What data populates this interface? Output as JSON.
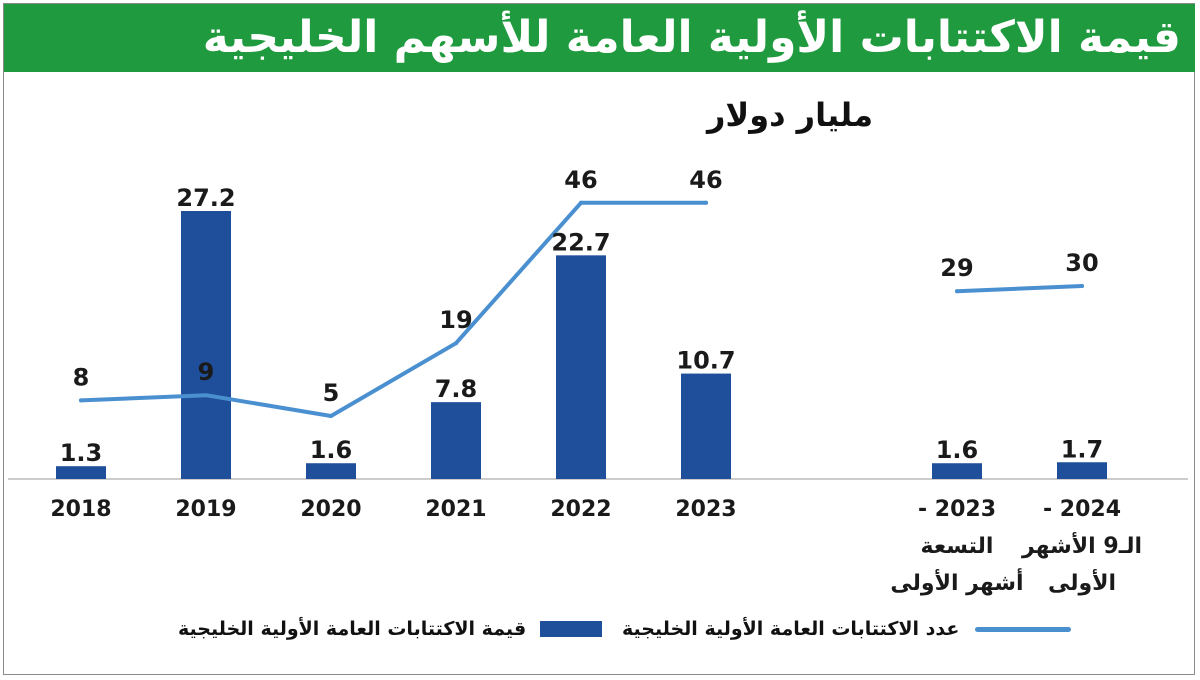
{
  "header": {
    "title": "قيمة الاكتتابات الأولية العامة للأسهم الخليجية"
  },
  "chart_data": {
    "type": "bar",
    "title": "قيمة الاكتتابات الأولية العامة للأسهم الخليجية",
    "subtitle": "مليار دولار",
    "ylabel": "مليار دولار",
    "categories": [
      "2018",
      "2019",
      "2020",
      "2021",
      "2022",
      "2023",
      "2023 - التسعة أشهر الأولى",
      "2024 - الـ9 الأشهر الأولى"
    ],
    "category_lines": [
      [
        "2018"
      ],
      [
        "2019"
      ],
      [
        "2020"
      ],
      [
        "2021"
      ],
      [
        "2022"
      ],
      [
        "2023"
      ],
      [
        "2023 -",
        "التسعة",
        "أشهر الأولى"
      ],
      [
        "2024 -",
        "الـ9 الأشهر",
        "الأولى"
      ]
    ],
    "series": [
      {
        "name": "قيمة الاكتتابات العامة الأولية الخليجية",
        "kind": "bar",
        "values": [
          1.3,
          27.2,
          1.6,
          7.8,
          22.7,
          10.7,
          1.6,
          1.7
        ],
        "labels": [
          "1.3",
          "27.2",
          "1.6",
          "7.8",
          "22.7",
          "10.7",
          "1.6",
          "1.7"
        ]
      },
      {
        "name": "عدد الاكتتابات العامة الأولية الخليجية",
        "kind": "line",
        "segments": [
          [
            0,
            1,
            2,
            3,
            4,
            5
          ],
          [
            6,
            7
          ]
        ],
        "values": [
          8,
          9,
          5,
          19,
          46,
          46,
          29,
          30
        ],
        "labels": [
          "8",
          "9",
          "5",
          "19",
          "46",
          "46",
          "29",
          "30"
        ]
      }
    ],
    "colors": {
      "bar": "#1f4e9a",
      "line": "#4a90d0",
      "header": "#1f9a3e"
    },
    "legend": {
      "position": "bottom",
      "line_label": "عدد الاكتتابات العامة الأولية الخليجية",
      "bar_label": "قيمة الاكتتابات العامة الأولية الخليجية"
    }
  }
}
